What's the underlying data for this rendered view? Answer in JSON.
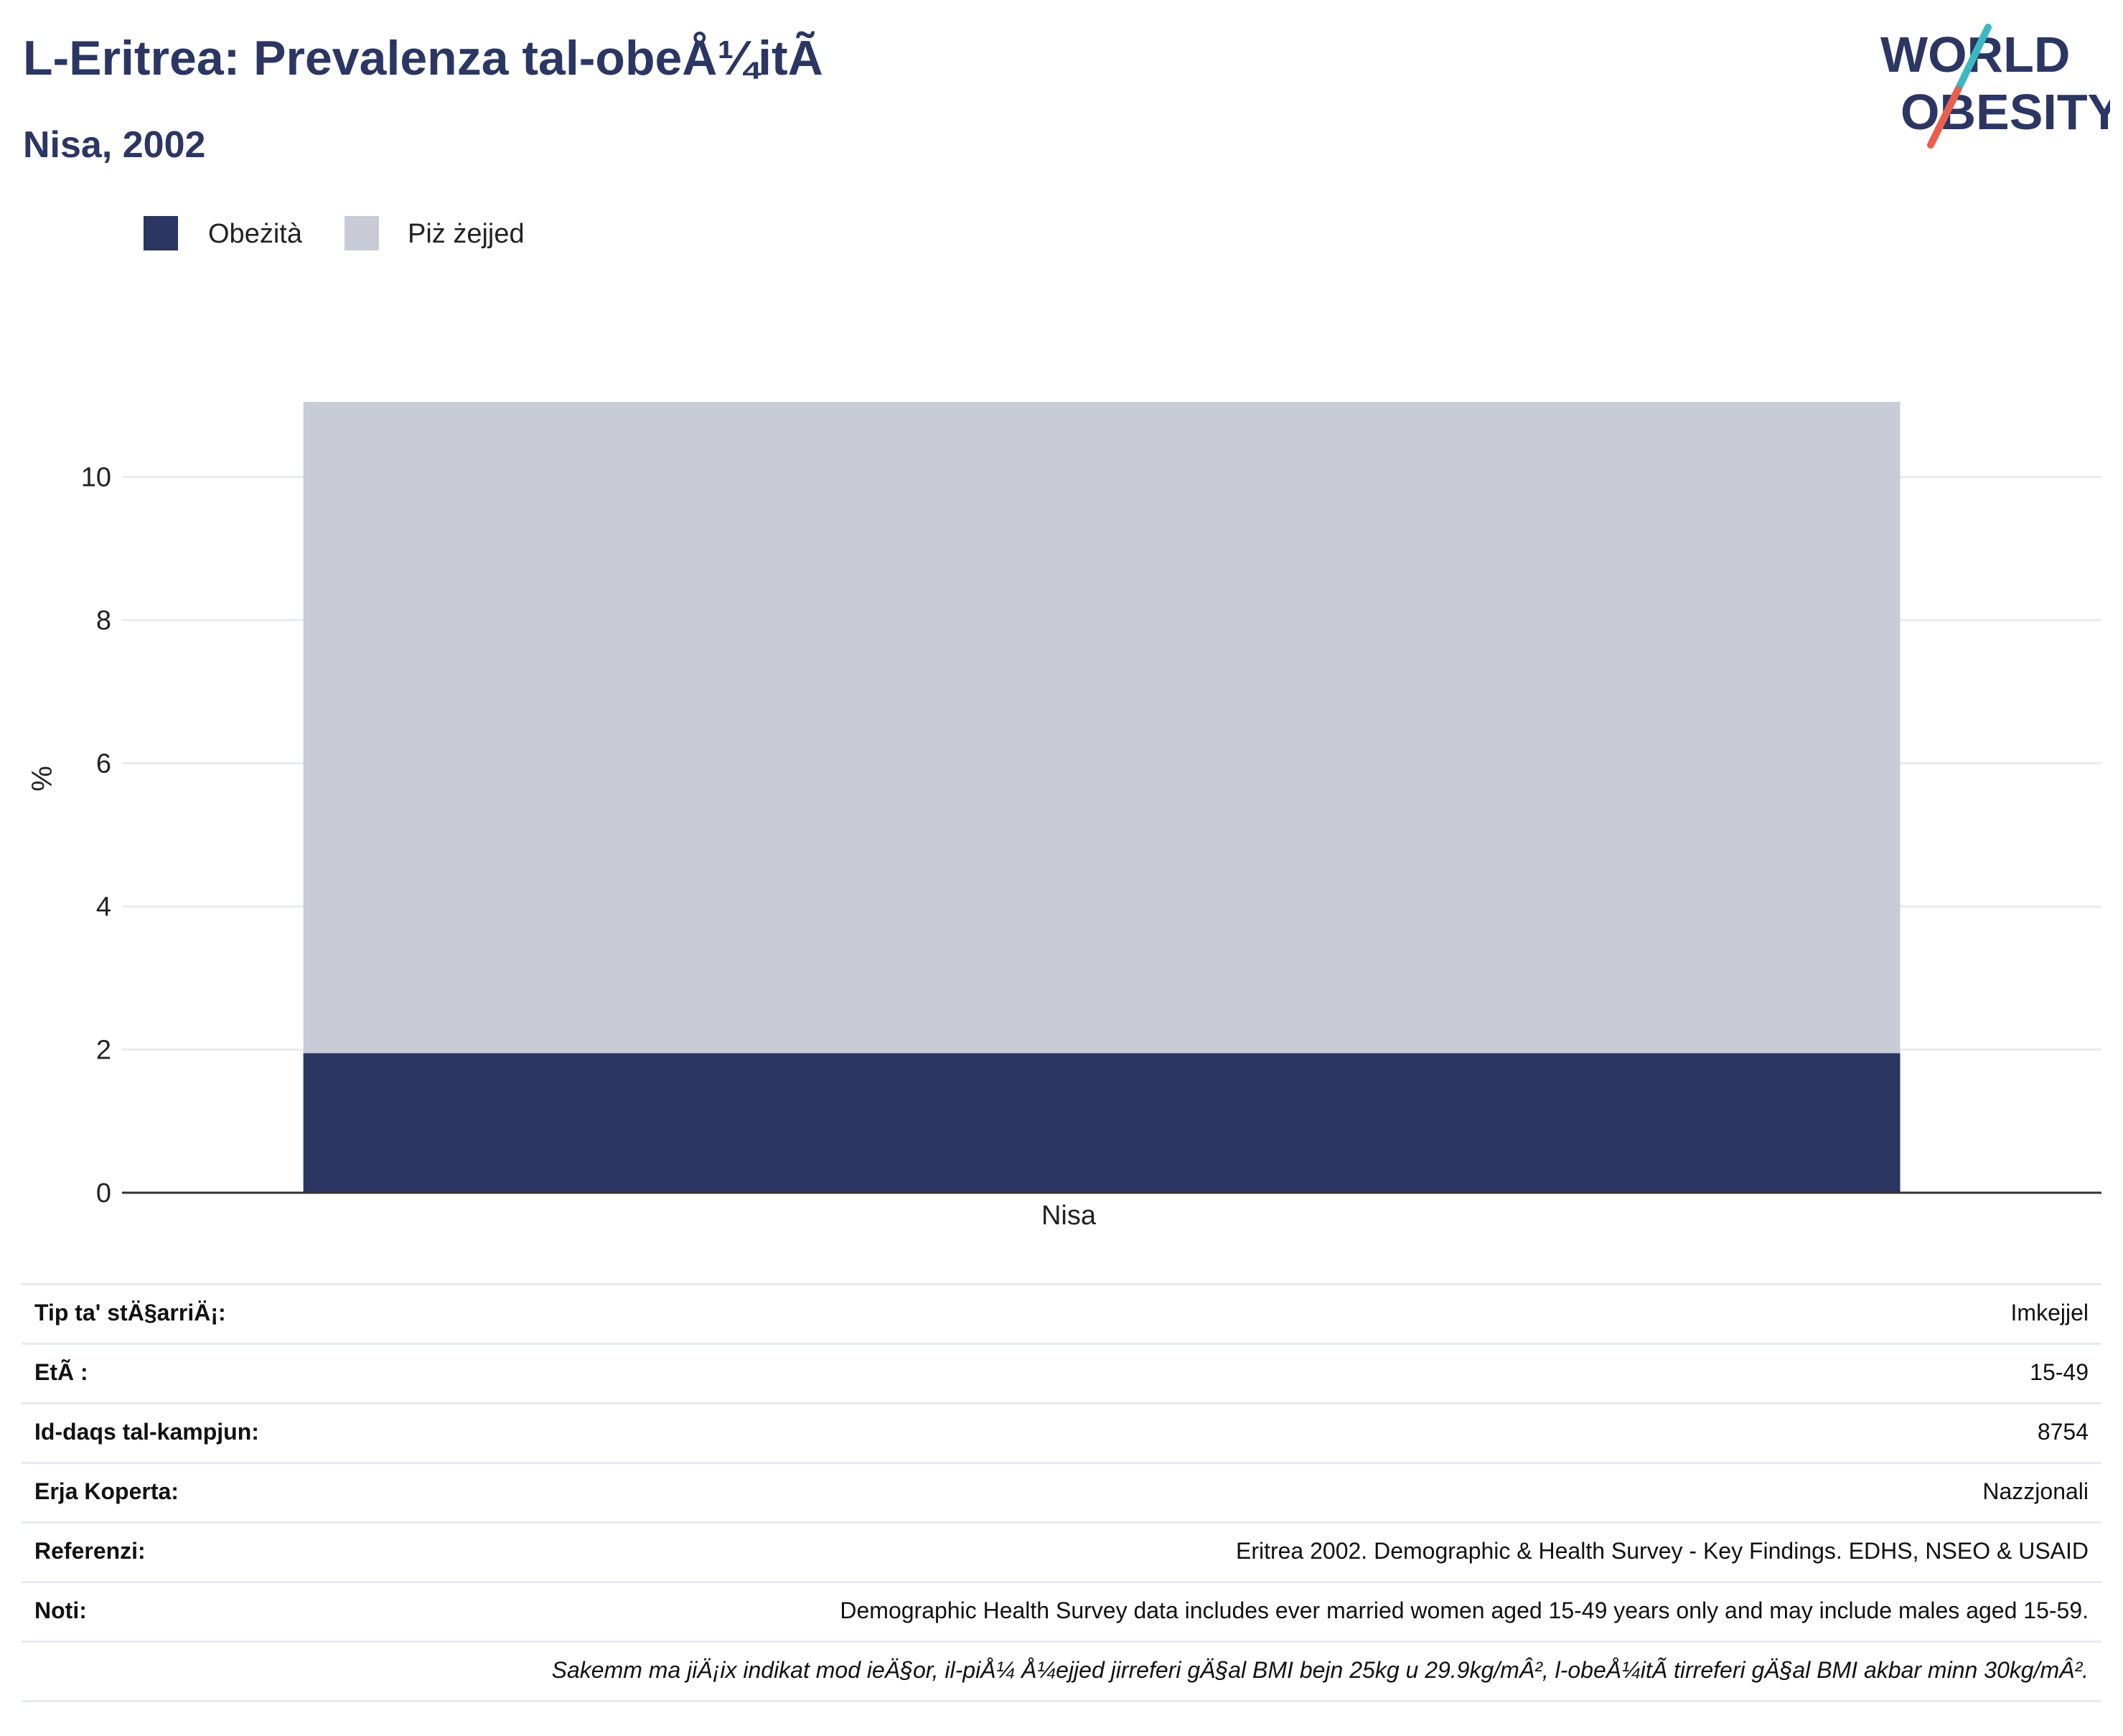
{
  "header": {
    "title": "L-Eritrea: Prevalenza tal-obeÅ¼itÃ",
    "subtitle": "Nisa, 2002"
  },
  "logo": {
    "line1": "WORLD",
    "line2": "OBESITY",
    "colors": {
      "text": "#2b3663",
      "slash_top": "#3bb8c4",
      "slash_bottom": "#e8604c"
    }
  },
  "legend": [
    {
      "label": "Obeżità",
      "color": "#2b3663"
    },
    {
      "label": "Piż żejjed",
      "color": "#c9ccd7"
    }
  ],
  "chart_data": {
    "type": "bar",
    "stacked": true,
    "categories": [
      "Nisa"
    ],
    "series": [
      {
        "name": "Obeżità",
        "values": [
          1.95
        ],
        "color": "#2b3663"
      },
      {
        "name": "Piż żejjed",
        "values": [
          9.1
        ],
        "color": "#c9ccd7"
      }
    ],
    "ylabel": "%",
    "xlabel": "",
    "ylim": [
      0,
      11.05
    ],
    "yticks": [
      0,
      2,
      4,
      6,
      8,
      10
    ],
    "grid": true,
    "legend_position": "top-left"
  },
  "info_table": [
    {
      "label": "Tip ta' stÄ§arriÄ¡:",
      "value": "Imkejjel"
    },
    {
      "label": "EtÃ :",
      "value": "15-49"
    },
    {
      "label": "Id-daqs tal-kampjun:",
      "value": "8754"
    },
    {
      "label": "Erja Koperta:",
      "value": "Nazzjonali"
    },
    {
      "label": "Referenzi:",
      "value": "Eritrea 2002. Demographic & Health Survey - Key Findings. EDHS, NSEO & USAID"
    },
    {
      "label": "Noti:",
      "value": "Demographic Health Survey data includes ever married women aged 15-49 years only and may include males aged 15-59."
    },
    {
      "label": "",
      "value": "Sakemm ma jiÄ¡ix indikat mod ieÄ§or, il-piÅ¼ Å¼ejjed jirreferi gÄ§al BMI bejn 25kg u 29.9kg/mÂ², l-obeÅ¼itÃ  tirreferi gÄ§al BMI akbar minn 30kg/mÂ²."
    }
  ]
}
